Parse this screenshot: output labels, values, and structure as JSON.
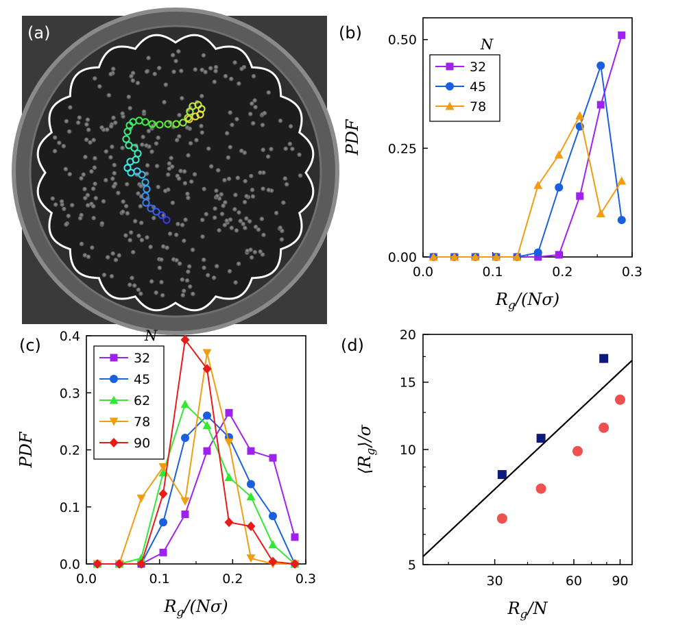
{
  "panel_a": {
    "label": "(a)"
  },
  "chart_data": [
    {
      "panel": "(b)",
      "type": "line",
      "title": "",
      "xlabel": "R_g/(Nσ)",
      "ylabel": "PDF",
      "xlim": [
        0,
        0.3
      ],
      "ylim": [
        0,
        0.55
      ],
      "xticks": [
        "0.0",
        "0.1",
        "0.2",
        "0.3"
      ],
      "yticks": [
        "0.00",
        "0.25",
        "0.50"
      ],
      "legend_title": "N",
      "legend_position": "top-left",
      "x": [
        0.015,
        0.045,
        0.075,
        0.105,
        0.135,
        0.165,
        0.195,
        0.225,
        0.255,
        0.285
      ],
      "series": [
        {
          "name": "32",
          "color": "#a020f0",
          "marker": "square",
          "values": [
            0,
            0,
            0,
            0,
            0,
            0,
            0.005,
            0.14,
            0.35,
            0.51
          ]
        },
        {
          "name": "45",
          "color": "#1a5fe0",
          "marker": "circle",
          "values": [
            0,
            0,
            0,
            0,
            0,
            0.01,
            0.16,
            0.3,
            0.44,
            0.085
          ]
        },
        {
          "name": "78",
          "color": "#f39c12",
          "marker": "triangle-up",
          "values": [
            0,
            0,
            0,
            0,
            0,
            0.165,
            0.235,
            0.325,
            0.1,
            0.175
          ]
        }
      ]
    },
    {
      "panel": "(c)",
      "type": "line",
      "title": "",
      "xlabel": "R_g/(Nσ)",
      "ylabel": "PDF",
      "xlim": [
        0,
        0.3
      ],
      "ylim": [
        0,
        0.4
      ],
      "xticks": [
        "0.0",
        "0.1",
        "0.2",
        "0.3"
      ],
      "yticks": [
        "0.0",
        "0.1",
        "0.2",
        "0.3",
        "0.4"
      ],
      "legend_title": "N",
      "legend_position": "top-left",
      "x": [
        0.015,
        0.045,
        0.075,
        0.105,
        0.135,
        0.165,
        0.195,
        0.225,
        0.255,
        0.285
      ],
      "series": [
        {
          "name": "32",
          "color": "#a020f0",
          "marker": "square",
          "values": [
            0,
            0,
            0,
            0.02,
            0.087,
            0.198,
            0.265,
            0.198,
            0.186,
            0.047
          ]
        },
        {
          "name": "45",
          "color": "#1a5fe0",
          "marker": "circle",
          "values": [
            0,
            0,
            0,
            0.073,
            0.221,
            0.26,
            0.222,
            0.14,
            0.084,
            0
          ]
        },
        {
          "name": "62",
          "color": "#33e833",
          "marker": "triangle-up",
          "values": [
            0,
            0,
            0.01,
            0.16,
            0.28,
            0.243,
            0.152,
            0.118,
            0.034,
            0
          ]
        },
        {
          "name": "78",
          "color": "#f39c12",
          "marker": "triangle-down",
          "values": [
            0,
            0,
            0.115,
            0.17,
            0.11,
            0.37,
            0.213,
            0.01,
            0,
            0
          ]
        },
        {
          "name": "90",
          "color": "#e81a1a",
          "marker": "diamond",
          "values": [
            0,
            0,
            0,
            0.123,
            0.393,
            0.342,
            0.073,
            0.066,
            0.004,
            0
          ]
        }
      ]
    },
    {
      "panel": "(d)",
      "type": "scatter",
      "title": "",
      "xlabel": "R_g/N",
      "ylabel": "⟨R_g⟩/σ",
      "xscale": "log",
      "yscale": "log",
      "xlim": [
        16,
        100
      ],
      "ylim": [
        5,
        20
      ],
      "xticks": [
        30,
        60,
        90
      ],
      "yticks": [
        5,
        10,
        15,
        20
      ],
      "series": [
        {
          "name": "",
          "color": "#0d1a7a",
          "marker": "square",
          "x": [
            32,
            45,
            78
          ],
          "values": [
            8.6,
            10.7,
            17.3
          ]
        },
        {
          "name": "",
          "color": "#f05050",
          "marker": "circle",
          "x": [
            32,
            45,
            62,
            78,
            90
          ],
          "values": [
            6.6,
            7.9,
            9.9,
            11.4,
            13.5
          ]
        },
        {
          "name": "",
          "color": "#000000",
          "marker": "none",
          "line": true,
          "x": [
            16,
            100
          ],
          "values": [
            5.25,
            17.1
          ]
        }
      ]
    }
  ]
}
